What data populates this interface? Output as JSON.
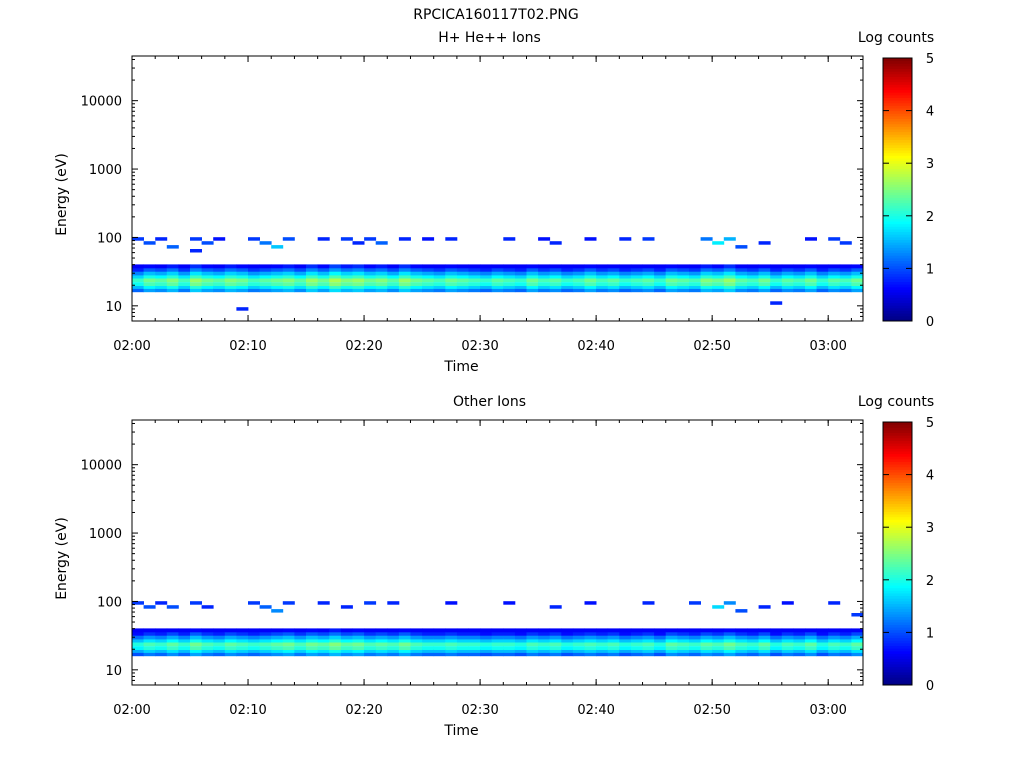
{
  "figure_title": "RPCICA160117T02.PNG",
  "chart_data": [
    {
      "type": "heatmap",
      "title": "H+ He++ Ions",
      "xlabel": "Time",
      "ylabel": "Energy (eV)",
      "xticks": [
        "02:00",
        "02:10",
        "02:20",
        "02:30",
        "02:40",
        "02:50",
        "03:00"
      ],
      "xlim": [
        "02:00",
        "03:03"
      ],
      "yscale": "log",
      "ylim": [
        6,
        45000
      ],
      "yticks": [
        "10",
        "100",
        "1000",
        "10000"
      ],
      "colorbar": {
        "label": "Log counts",
        "range": [
          0,
          5
        ],
        "ticks": [
          "0",
          "1",
          "2",
          "3",
          "4",
          "5"
        ],
        "colormap": "jet"
      },
      "time_bins": [
        "02:00",
        "02:01",
        "02:02",
        "02:03",
        "02:04",
        "02:05",
        "02:06",
        "02:07",
        "02:08",
        "02:09",
        "02:10",
        "02:11",
        "02:12",
        "02:13",
        "02:14",
        "02:15",
        "02:16",
        "02:17",
        "02:18",
        "02:19",
        "02:20",
        "02:21",
        "02:22",
        "02:23",
        "02:24",
        "02:25",
        "02:26",
        "02:27",
        "02:28",
        "02:29",
        "02:30",
        "02:31",
        "02:32",
        "02:33",
        "02:34",
        "02:35",
        "02:36",
        "02:37",
        "02:38",
        "02:39",
        "02:40",
        "02:41",
        "02:42",
        "02:43",
        "02:44",
        "02:45",
        "02:46",
        "02:47",
        "02:48",
        "02:49",
        "02:50",
        "02:51",
        "02:52",
        "02:53",
        "02:54",
        "02:55",
        "02:56",
        "02:57",
        "02:58",
        "02:59",
        "03:00",
        "03:01",
        "03:02"
      ],
      "energy_bins_eV": [
        9,
        11,
        13,
        15,
        17,
        19,
        21,
        24,
        27,
        30,
        34,
        38,
        43,
        49,
        56,
        64,
        73,
        83,
        95
      ],
      "peak_log_counts": [
        2.3,
        2.6,
        2.5,
        2.7,
        2.4,
        2.8,
        2.6,
        2.5,
        2.7,
        2.6,
        2.4,
        2.5,
        2.6,
        2.7,
        2.5,
        2.8,
        2.6,
        2.9,
        2.7,
        2.8,
        2.6,
        2.7,
        2.5,
        2.8,
        2.6,
        2.5,
        2.4,
        2.6,
        2.5,
        2.4,
        2.3,
        2.5,
        2.4,
        2.3,
        2.6,
        2.4,
        2.5,
        2.3,
        2.4,
        2.6,
        2.4,
        2.5,
        2.3,
        2.4,
        2.5,
        2.3,
        2.6,
        2.5,
        2.4,
        2.7,
        2.6,
        2.8,
        2.5,
        2.4,
        2.6,
        2.3,
        2.5,
        2.4,
        2.6,
        2.3,
        2.5,
        2.4,
        2.6
      ],
      "sparse_high_energy": [
        {
          "t": "02:00",
          "e": 95,
          "v": 0.9
        },
        {
          "t": "02:01",
          "e": 83,
          "v": 1.0
        },
        {
          "t": "02:02",
          "e": 95,
          "v": 0.8
        },
        {
          "t": "02:03",
          "e": 73,
          "v": 1.1
        },
        {
          "t": "02:05",
          "e": 95,
          "v": 0.9
        },
        {
          "t": "02:05",
          "e": 64,
          "v": 0.8
        },
        {
          "t": "02:06",
          "e": 83,
          "v": 1.0
        },
        {
          "t": "02:07",
          "e": 95,
          "v": 0.7
        },
        {
          "t": "02:10",
          "e": 95,
          "v": 0.9
        },
        {
          "t": "02:11",
          "e": 83,
          "v": 1.2
        },
        {
          "t": "02:12",
          "e": 73,
          "v": 1.6
        },
        {
          "t": "02:13",
          "e": 95,
          "v": 1.0
        },
        {
          "t": "02:16",
          "e": 95,
          "v": 0.8
        },
        {
          "t": "02:18",
          "e": 95,
          "v": 0.9
        },
        {
          "t": "02:19",
          "e": 83,
          "v": 0.8
        },
        {
          "t": "02:20",
          "e": 95,
          "v": 0.9
        },
        {
          "t": "02:21",
          "e": 83,
          "v": 1.1
        },
        {
          "t": "02:23",
          "e": 95,
          "v": 0.8
        },
        {
          "t": "02:25",
          "e": 95,
          "v": 0.7
        },
        {
          "t": "02:27",
          "e": 95,
          "v": 0.8
        },
        {
          "t": "02:32",
          "e": 95,
          "v": 0.8
        },
        {
          "t": "02:35",
          "e": 95,
          "v": 0.7
        },
        {
          "t": "02:36",
          "e": 83,
          "v": 0.8
        },
        {
          "t": "02:39",
          "e": 95,
          "v": 0.7
        },
        {
          "t": "02:42",
          "e": 95,
          "v": 0.8
        },
        {
          "t": "02:44",
          "e": 95,
          "v": 0.9
        },
        {
          "t": "02:49",
          "e": 95,
          "v": 1.2
        },
        {
          "t": "02:50",
          "e": 83,
          "v": 1.8
        },
        {
          "t": "02:51",
          "e": 95,
          "v": 1.5
        },
        {
          "t": "02:52",
          "e": 73,
          "v": 1.0
        },
        {
          "t": "02:54",
          "e": 83,
          "v": 0.8
        },
        {
          "t": "02:58",
          "e": 95,
          "v": 0.7
        },
        {
          "t": "03:00",
          "e": 95,
          "v": 0.9
        },
        {
          "t": "03:01",
          "e": 83,
          "v": 0.9
        },
        {
          "t": "02:09",
          "e": 9,
          "v": 0.8
        },
        {
          "t": "02:55",
          "e": 11,
          "v": 0.8
        }
      ]
    },
    {
      "type": "heatmap",
      "title": "Other Ions",
      "xlabel": "Time",
      "ylabel": "Energy (eV)",
      "xticks": [
        "02:00",
        "02:10",
        "02:20",
        "02:30",
        "02:40",
        "02:50",
        "03:00"
      ],
      "xlim": [
        "02:00",
        "03:03"
      ],
      "yscale": "log",
      "ylim": [
        6,
        45000
      ],
      "yticks": [
        "10",
        "100",
        "1000",
        "10000"
      ],
      "colorbar": {
        "label": "Log counts",
        "range": [
          0,
          5
        ],
        "ticks": [
          "0",
          "1",
          "2",
          "3",
          "4",
          "5"
        ],
        "colormap": "jet"
      },
      "time_bins": [
        "02:00",
        "02:01",
        "02:02",
        "02:03",
        "02:04",
        "02:05",
        "02:06",
        "02:07",
        "02:08",
        "02:09",
        "02:10",
        "02:11",
        "02:12",
        "02:13",
        "02:14",
        "02:15",
        "02:16",
        "02:17",
        "02:18",
        "02:19",
        "02:20",
        "02:21",
        "02:22",
        "02:23",
        "02:24",
        "02:25",
        "02:26",
        "02:27",
        "02:28",
        "02:29",
        "02:30",
        "02:31",
        "02:32",
        "02:33",
        "02:34",
        "02:35",
        "02:36",
        "02:37",
        "02:38",
        "02:39",
        "02:40",
        "02:41",
        "02:42",
        "02:43",
        "02:44",
        "02:45",
        "02:46",
        "02:47",
        "02:48",
        "02:49",
        "02:50",
        "02:51",
        "02:52",
        "02:53",
        "02:54",
        "02:55",
        "02:56",
        "02:57",
        "02:58",
        "02:59",
        "03:00",
        "03:01",
        "03:02"
      ],
      "energy_bins_eV": [
        9,
        11,
        13,
        15,
        17,
        19,
        21,
        24,
        27,
        30,
        34,
        38,
        43,
        49,
        56,
        64,
        73,
        83,
        95
      ],
      "peak_log_counts": [
        2.2,
        2.4,
        2.3,
        2.5,
        2.3,
        2.6,
        2.4,
        2.3,
        2.5,
        2.4,
        2.3,
        2.4,
        2.5,
        2.6,
        2.4,
        2.6,
        2.5,
        2.7,
        2.5,
        2.6,
        2.4,
        2.5,
        2.4,
        2.6,
        2.4,
        2.3,
        2.3,
        2.4,
        2.3,
        2.3,
        2.2,
        2.3,
        2.3,
        2.2,
        2.4,
        2.3,
        2.4,
        2.2,
        2.3,
        2.4,
        2.3,
        2.4,
        2.2,
        2.3,
        2.4,
        2.2,
        2.5,
        2.4,
        2.3,
        2.5,
        2.4,
        2.6,
        2.4,
        2.3,
        2.5,
        2.2,
        2.4,
        2.3,
        2.5,
        2.2,
        2.4,
        2.3,
        2.5
      ],
      "sparse_high_energy": [
        {
          "t": "02:00",
          "e": 95,
          "v": 0.9
        },
        {
          "t": "02:01",
          "e": 83,
          "v": 1.0
        },
        {
          "t": "02:02",
          "e": 95,
          "v": 0.8
        },
        {
          "t": "02:03",
          "e": 83,
          "v": 1.0
        },
        {
          "t": "02:05",
          "e": 95,
          "v": 0.9
        },
        {
          "t": "02:06",
          "e": 83,
          "v": 0.8
        },
        {
          "t": "02:10",
          "e": 95,
          "v": 0.9
        },
        {
          "t": "02:11",
          "e": 83,
          "v": 1.1
        },
        {
          "t": "02:12",
          "e": 73,
          "v": 1.3
        },
        {
          "t": "02:13",
          "e": 95,
          "v": 0.9
        },
        {
          "t": "02:16",
          "e": 95,
          "v": 0.8
        },
        {
          "t": "02:18",
          "e": 83,
          "v": 0.8
        },
        {
          "t": "02:20",
          "e": 95,
          "v": 0.9
        },
        {
          "t": "02:22",
          "e": 95,
          "v": 0.8
        },
        {
          "t": "02:27",
          "e": 95,
          "v": 0.7
        },
        {
          "t": "02:32",
          "e": 95,
          "v": 0.7
        },
        {
          "t": "02:36",
          "e": 83,
          "v": 0.8
        },
        {
          "t": "02:39",
          "e": 95,
          "v": 0.7
        },
        {
          "t": "02:44",
          "e": 95,
          "v": 0.8
        },
        {
          "t": "02:48",
          "e": 95,
          "v": 0.9
        },
        {
          "t": "02:50",
          "e": 83,
          "v": 1.7
        },
        {
          "t": "02:51",
          "e": 95,
          "v": 1.3
        },
        {
          "t": "02:52",
          "e": 73,
          "v": 1.0
        },
        {
          "t": "02:54",
          "e": 83,
          "v": 0.8
        },
        {
          "t": "02:56",
          "e": 95,
          "v": 0.7
        },
        {
          "t": "03:00",
          "e": 95,
          "v": 0.8
        },
        {
          "t": "03:02",
          "e": 64,
          "v": 0.9
        }
      ]
    }
  ]
}
